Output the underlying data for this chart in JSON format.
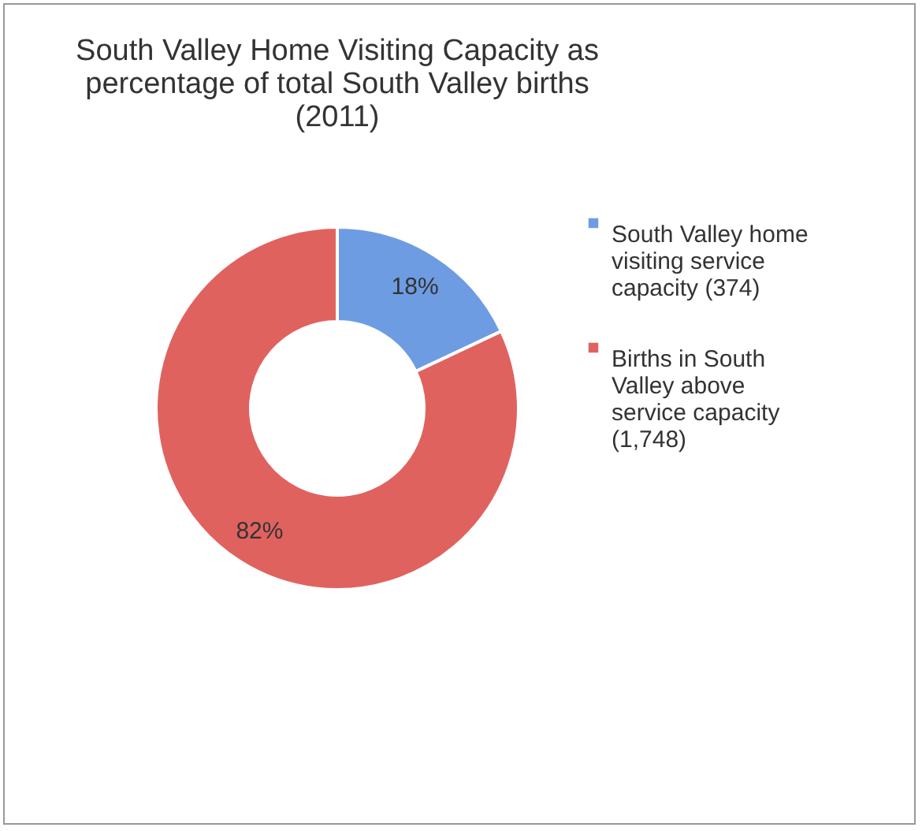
{
  "chart_data": {
    "type": "donut",
    "title": "South Valley Home Visiting Capacity as percentage of total South Valley births (2011)",
    "categories": [
      "South Valley home visiting service capacity (374)",
      "Births in South Valley above service capacity (1,748)"
    ],
    "values": [
      18,
      82
    ],
    "colors": [
      "#6d9ce3",
      "#e0625f"
    ],
    "value_labels": [
      "18%",
      "82%"
    ],
    "legend": "right"
  }
}
